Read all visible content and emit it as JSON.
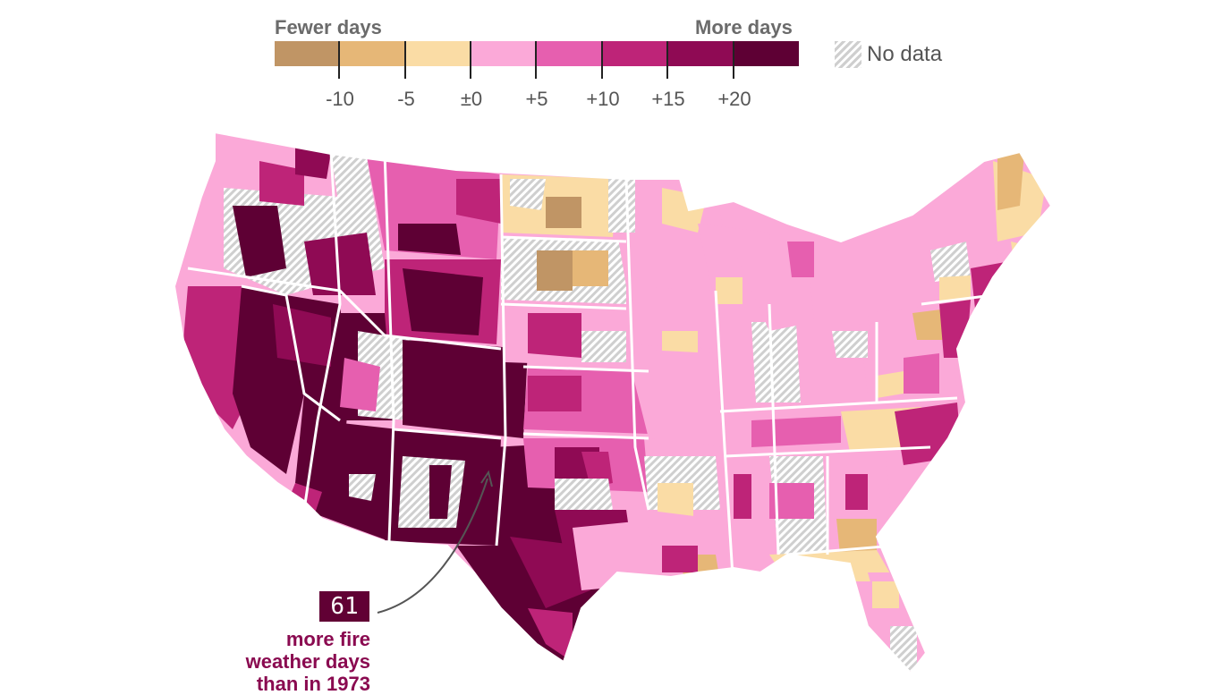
{
  "legend": {
    "fewer_label": "Fewer days",
    "more_label": "More days",
    "no_data_label": "No data",
    "ticks": [
      "-10",
      "-5",
      "±0",
      "+5",
      "+10",
      "+15",
      "+20"
    ],
    "colors": [
      "#c09565",
      "#e6b777",
      "#fadca5",
      "#fba9d8",
      "#e65faf",
      "#be2478",
      "#8f0a54",
      "#5e0034"
    ],
    "no_data_color": "#cfcfcf"
  },
  "callout": {
    "value": "61",
    "text_lines": [
      "more fire",
      "weather days",
      "than in 1973"
    ]
  },
  "colors": {
    "border": "#ffffff",
    "state_border": "#ffffff",
    "callout_text": "#8a0a50",
    "arrow": "#555555"
  }
}
